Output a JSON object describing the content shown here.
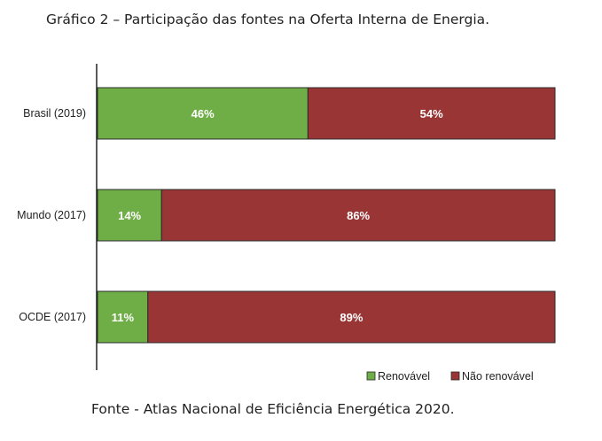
{
  "title": "Gráfico 2 – Participação das fontes na Oferta Interna de Energia.",
  "source": "Fonte - Atlas Nacional de Eficiência Energética 2020.",
  "chart_data": {
    "type": "bar",
    "orientation": "horizontal",
    "stacked": true,
    "percent": true,
    "categories": [
      "Brasil (2019)",
      "Mundo (2017)",
      "OCDE (2017)"
    ],
    "series": [
      {
        "name": "Renovável",
        "values": [
          46,
          14,
          11
        ],
        "labels": [
          "46%",
          "14%",
          "11%"
        ],
        "color": "#6fad47"
      },
      {
        "name": "Não renovável",
        "values": [
          54,
          86,
          89
        ],
        "labels": [
          "54%",
          "86%",
          "89%"
        ],
        "color": "#993535"
      }
    ],
    "xlim": [
      0,
      100
    ],
    "legend": "bottom-right",
    "grid": false
  }
}
